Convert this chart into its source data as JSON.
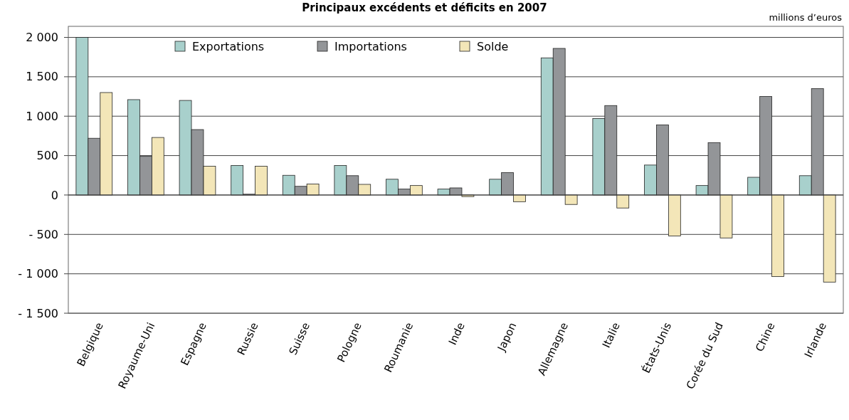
{
  "chart_data": {
    "type": "bar",
    "title": "Principaux excédents et déficits en 2007",
    "ylabel": "millions d’euros",
    "categories": [
      "Belgique",
      "Royaume-Uni",
      "Espagne",
      "Russie",
      "Suisse",
      "Pologne",
      "Roumanie",
      "Inde",
      "Japon",
      "Allemagne",
      "Italie",
      "États-Unis",
      "Corée du Sud",
      "Chine",
      "Irlande"
    ],
    "series": [
      {
        "name": "Exportations",
        "color": "#a8d0cc",
        "values": [
          2000,
          1210,
          1200,
          375,
          250,
          375,
          200,
          75,
          200,
          1740,
          970,
          380,
          120,
          225,
          245
        ]
      },
      {
        "name": "Importations",
        "color": "#939598",
        "values": [
          720,
          490,
          830,
          10,
          110,
          245,
          75,
          90,
          285,
          1860,
          1135,
          890,
          665,
          1250,
          1350
        ]
      },
      {
        "name": "Solde",
        "color": "#f3e6b8",
        "values": [
          1300,
          730,
          365,
          365,
          140,
          135,
          120,
          -20,
          -85,
          -120,
          -165,
          -520,
          -545,
          -1035,
          -1105
        ]
      }
    ],
    "ylim": [
      -1500,
      2140
    ],
    "yticks": [
      {
        "value": -1500,
        "label": "- 1 500"
      },
      {
        "value": -1000,
        "label": "- 1 000"
      },
      {
        "value": -500,
        "label": "- 500"
      },
      0,
      500,
      {
        "value": 1000,
        "label": "1 000"
      },
      {
        "value": 1500,
        "label": "1 500"
      },
      {
        "value": 2000,
        "label": "2 000"
      }
    ],
    "grid": "y",
    "legend": "top"
  }
}
